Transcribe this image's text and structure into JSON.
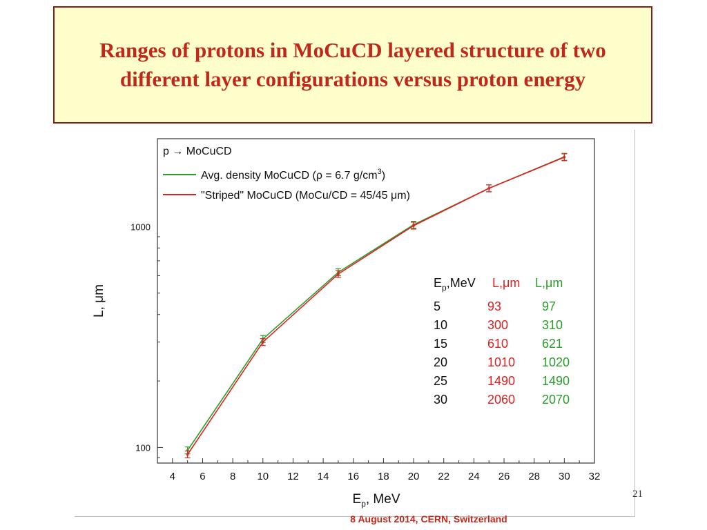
{
  "slide": {
    "title": "Ranges of protons in MoCuCD layered structure of two different layer configurations versus proton energy",
    "footer": "8 August 2014, CERN, Switzerland",
    "page_number": "21"
  },
  "chart_data": {
    "type": "line",
    "title": "p → MoCuCD",
    "xlabel": "E",
    "xlabel_sub": "p",
    "xlabel_unit": ", MeV",
    "ylabel": "L, μm",
    "xlim": [
      3,
      32
    ],
    "ylim": [
      85,
      2500
    ],
    "y_scale": "log",
    "x_ticks": [
      4,
      6,
      8,
      10,
      12,
      14,
      16,
      18,
      20,
      22,
      24,
      26,
      28,
      30,
      32
    ],
    "y_tick_labels": [
      100,
      1000
    ],
    "legend_position": "top-left",
    "series": [
      {
        "name": "Avg. density MoCuCD (ρ = 6.7 g/cm³)",
        "legend": {
          "pre": "Avg. density MoCuCD (",
          "rho": "ρ",
          "mid": " = 6.7 g/cm",
          "sup": "3",
          "post": ")"
        },
        "color": "#2a9d2a",
        "x": [
          5,
          10,
          15,
          20,
          25,
          30
        ],
        "y": [
          97,
          310,
          621,
          1020,
          1490,
          2070
        ]
      },
      {
        "name": "\"Striped\" MoCuCD (MoCu/CD = 45/45 μm)",
        "legend": {
          "pre": "\"Striped\" MoCuCD (MoCu/CD = 45/45 ",
          "mu": "μ",
          "post": "m)"
        },
        "color": "#e02020",
        "x": [
          5,
          10,
          15,
          20,
          25,
          30
        ],
        "y": [
          93,
          300,
          610,
          1010,
          1490,
          2060
        ]
      }
    ],
    "inset_table": {
      "headers": [
        {
          "main": "E",
          "sub": "p",
          "tail": ",MeV",
          "color": "#111111"
        },
        {
          "main": "L,μm",
          "color": "#e02020"
        },
        {
          "main": "L,μm",
          "color": "#2a9d2a"
        }
      ],
      "rows": [
        [
          "5",
          "93",
          "97"
        ],
        [
          "10",
          "300",
          "310"
        ],
        [
          "15",
          "610",
          "621"
        ],
        [
          "20",
          "1010",
          "1020"
        ],
        [
          "25",
          "1490",
          "1490"
        ],
        [
          "30",
          "2060",
          "2070"
        ]
      ]
    }
  }
}
